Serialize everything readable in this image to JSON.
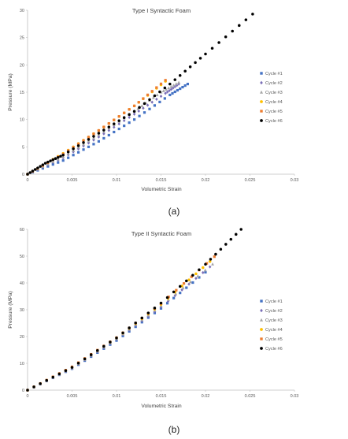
{
  "colors": {
    "cycle1": "#4472C4",
    "cycle2": "#7B6FB8",
    "cycle3": "#A5A5A5",
    "cycle4": "#FFC000",
    "cycle5": "#ED7D31",
    "cycle6": "#000000",
    "axis": "#bfbfbf"
  },
  "chart_data": [
    {
      "type": "scatter",
      "panel_label": "(a)",
      "title": "Type I Syntactic Foam",
      "xlabel": "Volumetric Strain",
      "ylabel": "Pressure (MPa)",
      "xlim": [
        0,
        0.03
      ],
      "ylim": [
        0,
        30
      ],
      "xticks": [
        "0",
        "0.005",
        "0.01",
        "0.015",
        "0.02",
        "0.025",
        "0.03"
      ],
      "yticks": [
        "0",
        "5",
        "10",
        "15",
        "20",
        "25",
        "30"
      ],
      "grid": false,
      "legend_position": "right",
      "series": [
        {
          "name": "Cycle #1",
          "marker": "square",
          "color": "#4472C4",
          "x": [
            0,
            0.004,
            0.008,
            0.012,
            0.016,
            0.018
          ],
          "y": [
            0,
            2.5,
            6,
            10,
            14.5,
            16.5
          ]
        },
        {
          "name": "Cycle #2",
          "marker": "diamond",
          "color": "#7B6FB8",
          "x": [
            0,
            0.004,
            0.008,
            0.012,
            0.0155,
            0.017
          ],
          "y": [
            0,
            3,
            6.8,
            11,
            14.8,
            16.5
          ]
        },
        {
          "name": "Cycle #3",
          "marker": "triangle",
          "color": "#A5A5A5",
          "x": [
            0,
            0.004,
            0.008,
            0.012,
            0.015,
            0.017
          ],
          "y": [
            0,
            3.2,
            7.2,
            11.5,
            15,
            16.8
          ]
        },
        {
          "name": "Cycle #4",
          "marker": "circle",
          "color": "#FFC000",
          "x": [
            0,
            0.004,
            0.008,
            0.012,
            0.0155
          ],
          "y": [
            0,
            3.8,
            8,
            12.5,
            17
          ]
        },
        {
          "name": "Cycle #5",
          "marker": "square",
          "color": "#ED7D31",
          "x": [
            0,
            0.004,
            0.008,
            0.012,
            0.0155
          ],
          "y": [
            0,
            3.7,
            8,
            12.5,
            17.2
          ]
        },
        {
          "name": "Cycle #6",
          "marker": "circle",
          "color": "#000000",
          "x": [
            0,
            0.002,
            0.004,
            0.008,
            0.012,
            0.016,
            0.02,
            0.0253
          ],
          "y": [
            0,
            2,
            3.5,
            7.5,
            11.5,
            16.5,
            22,
            29.3
          ]
        }
      ]
    },
    {
      "type": "scatter",
      "panel_label": "(b)",
      "title": "Type II Syntactic Foam",
      "xlabel": "Volumetric Strain",
      "ylabel": "Pressure (MPa)",
      "xlim": [
        0,
        0.03
      ],
      "ylim": [
        0,
        60
      ],
      "xticks": [
        "0",
        "0.005",
        "0.01",
        "0.015",
        "0.02",
        "0.025",
        "0.03"
      ],
      "yticks": [
        "0",
        "10",
        "20",
        "30",
        "40",
        "50",
        "60"
      ],
      "grid": false,
      "legend_position": "right",
      "series": [
        {
          "name": "Cycle #1",
          "marker": "square",
          "color": "#4472C4",
          "x": [
            0,
            0.005,
            0.01,
            0.015,
            0.02
          ],
          "y": [
            0,
            8,
            18.5,
            30.5,
            44
          ]
        },
        {
          "name": "Cycle #2",
          "marker": "diamond",
          "color": "#7B6FB8",
          "x": [
            0,
            0.005,
            0.01,
            0.015,
            0.0205
          ],
          "y": [
            0,
            8.2,
            19,
            31,
            46
          ]
        },
        {
          "name": "Cycle #3",
          "marker": "triangle",
          "color": "#A5A5A5",
          "x": [
            0,
            0.005,
            0.01,
            0.015,
            0.0208
          ],
          "y": [
            0,
            8.3,
            19.2,
            31.5,
            47
          ]
        },
        {
          "name": "Cycle #4",
          "marker": "circle",
          "color": "#FFC000",
          "x": [
            0,
            0.005,
            0.01,
            0.015,
            0.0205
          ],
          "y": [
            0,
            8.6,
            19.5,
            32,
            48
          ]
        },
        {
          "name": "Cycle #5",
          "marker": "square",
          "color": "#ED7D31",
          "x": [
            0,
            0.005,
            0.01,
            0.015,
            0.021
          ],
          "y": [
            0,
            8.7,
            19.6,
            32.3,
            49.8
          ]
        },
        {
          "name": "Cycle #6",
          "marker": "circle",
          "color": "#000000",
          "x": [
            0,
            0.005,
            0.01,
            0.015,
            0.02,
            0.024
          ],
          "y": [
            0,
            8.5,
            19.5,
            32.5,
            47,
            60
          ]
        }
      ]
    }
  ]
}
